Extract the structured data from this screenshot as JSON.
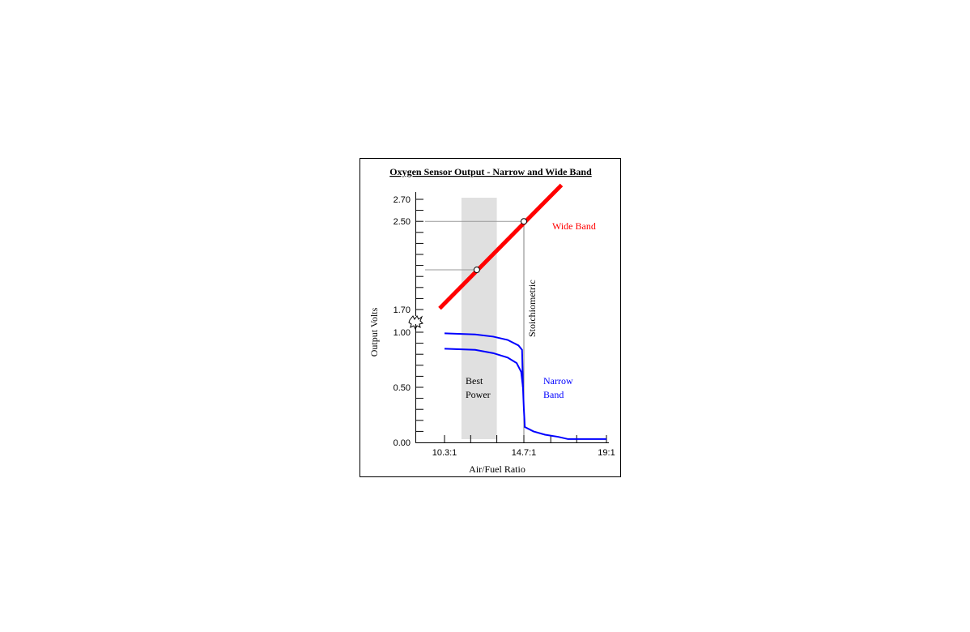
{
  "chart_data": {
    "type": "line",
    "title": "Oxygen Sensor Output - Narrow and Wide Band",
    "xlabel": "Air/Fuel Ratio",
    "ylabel": "Output Volts",
    "x_tick_labels": [
      {
        "value": 10.3,
        "label": "10.3:1"
      },
      {
        "value": 14.7,
        "label": "14.7:1"
      },
      {
        "value": 19,
        "label": "19:1"
      }
    ],
    "y_tick_labels": [
      {
        "value": 0.0,
        "label": "0.00"
      },
      {
        "value": 0.5,
        "label": "0.50"
      },
      {
        "value": 1.0,
        "label": "1.00"
      },
      {
        "value": 1.7,
        "label": "1.70"
      },
      {
        "value": 2.5,
        "label": "2.50"
      },
      {
        "value": 2.7,
        "label": "2.70"
      }
    ],
    "y_axis_break": [
      1.0,
      1.7
    ],
    "grid": false,
    "series": [
      {
        "name": "Wide Band",
        "color": "#ff0000",
        "x": [
          10.03,
          16.66
        ],
        "y": [
          1.71,
          2.83
        ],
        "markers": [
          {
            "x": 12.09,
            "y": 2.06
          },
          {
            "x": 14.7,
            "y": 2.5
          }
        ]
      },
      {
        "name": "Narrow Band",
        "color": "#0000ff",
        "x": [
          10.3,
          12.0,
          13.0,
          13.8,
          14.4,
          14.6,
          14.65,
          14.7,
          14.75,
          15.2,
          15.8,
          16.5,
          17.0,
          19.0
        ],
        "y": [
          0.99,
          0.98,
          0.96,
          0.93,
          0.88,
          0.84,
          0.5,
          0.3,
          0.14,
          0.1,
          0.07,
          0.05,
          0.03,
          0.03
        ]
      },
      {
        "name": "Narrow Band",
        "color": "#0000ff",
        "x": [
          10.3,
          12.0,
          13.0,
          13.8,
          14.3,
          14.55,
          14.65
        ],
        "y": [
          0.85,
          0.84,
          0.81,
          0.77,
          0.72,
          0.64,
          0.5
        ]
      }
    ],
    "labels": {
      "wide_band": "Wide Band",
      "narrow_band_1": "Narrow",
      "narrow_band_2": "Band",
      "best_power_1": "Best",
      "best_power_2": "Power",
      "stoichiometric": "Stoichiometric"
    },
    "best_power_region": {
      "x": [
        11.24,
        13.2
      ],
      "color": "#e0e0e0"
    },
    "stoichiometric_x": 14.7
  }
}
